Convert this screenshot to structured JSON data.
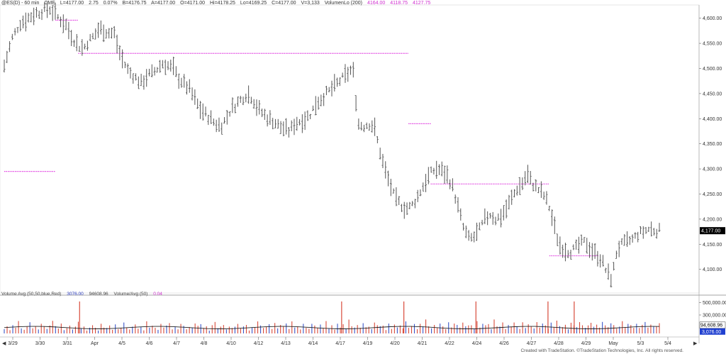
{
  "header": {
    "symbol": "@ES(D) - 60 min",
    "exchange": "CME",
    "last": "L=4177.00",
    "change": "2.75",
    "change_pct": "0.07%",
    "bid": "B=4176.75",
    "ask": "A=4177.00",
    "open": "O=4171.00",
    "high": "Hi=4178.25",
    "low": "Lo=4169.25",
    "close": "C=4177.00",
    "volume": "V=3,133",
    "indicator": "VolumenLo (200)",
    "ind_v1": "4164.00",
    "ind_v2": "4118.75",
    "ind_v3": "4127.75"
  },
  "volume_header": {
    "label": "Volume Avg (50,50,blue,Red)",
    "v1": "3076.00",
    "v2": "94608.96",
    "label2": "Volume/Avg (50)",
    "v3": "0.04"
  },
  "credit": "Created with TradeStation. ©TradeStation Technologies, Inc. All rights reserved.",
  "colors": {
    "bars": "#555555",
    "level_lines": "#e040e0",
    "vol_up": "#3a55c8",
    "vol_down": "#d84a3a",
    "avg_line": "#222222",
    "last_box_bg": "#000000",
    "vol_box_bg": "#1f3fd0"
  },
  "chart_data": {
    "type": "ohlc",
    "title": "@ES(D) - 60 min",
    "price_axis": {
      "ticks": [
        "4,600.00",
        "4,550.00",
        "4,500.00",
        "4,450.00",
        "4,400.00",
        "4,350.00",
        "4,300.00",
        "4,250.00",
        "4,200.00",
        "4,150.00",
        "4,100.00"
      ],
      "range": [
        4060,
        4625
      ]
    },
    "last_price_label": "4,177.00",
    "volume_axis": {
      "ticks": [
        "500,000.00",
        "300,000.00"
      ],
      "avg_label": "94,608.96",
      "last_label": "3,076.00"
    },
    "x_labels": [
      "3/29",
      "3/30",
      "3/31",
      "Apr",
      "4/5",
      "4/6",
      "4/7",
      "4/8",
      "4/10",
      "4/12",
      "4/13",
      "4/14",
      "4/17",
      "4/19",
      "4/20",
      "4/21",
      "4/22",
      "4/24",
      "4/26",
      "4/27",
      "4/28",
      "4/29",
      "May",
      "5/3",
      "5/4"
    ],
    "price_path": [
      [
        0,
        4505
      ],
      [
        3,
        4560
      ],
      [
        6,
        4590
      ],
      [
        9,
        4600
      ],
      [
        12,
        4610
      ],
      [
        15,
        4615
      ],
      [
        17,
        4620
      ],
      [
        19,
        4610
      ],
      [
        21,
        4598
      ],
      [
        23,
        4590
      ],
      [
        26,
        4560
      ],
      [
        28,
        4545
      ],
      [
        30,
        4540
      ],
      [
        32,
        4555
      ],
      [
        34,
        4565
      ],
      [
        36,
        4580
      ],
      [
        38,
        4575
      ],
      [
        40,
        4570
      ],
      [
        42,
        4570
      ],
      [
        43,
        4540
      ],
      [
        45,
        4515
      ],
      [
        47,
        4495
      ],
      [
        50,
        4480
      ],
      [
        52,
        4470
      ],
      [
        54,
        4485
      ],
      [
        56,
        4490
      ],
      [
        58,
        4500
      ],
      [
        60,
        4510
      ],
      [
        62,
        4505
      ],
      [
        64,
        4500
      ],
      [
        66,
        4480
      ],
      [
        68,
        4470
      ],
      [
        70,
        4460
      ],
      [
        72,
        4440
      ],
      [
        74,
        4420
      ],
      [
        76,
        4410
      ],
      [
        78,
        4400
      ],
      [
        80,
        4390
      ],
      [
        82,
        4385
      ],
      [
        84,
        4400
      ],
      [
        86,
        4420
      ],
      [
        88,
        4430
      ],
      [
        90,
        4440
      ],
      [
        92,
        4450
      ],
      [
        94,
        4440
      ],
      [
        96,
        4420
      ],
      [
        98,
        4410
      ],
      [
        100,
        4400
      ],
      [
        102,
        4395
      ],
      [
        104,
        4385
      ],
      [
        106,
        4380
      ],
      [
        108,
        4375
      ],
      [
        110,
        4390
      ],
      [
        112,
        4395
      ],
      [
        114,
        4400
      ],
      [
        116,
        4410
      ],
      [
        118,
        4430
      ],
      [
        120,
        4440
      ],
      [
        122,
        4450
      ],
      [
        124,
        4460
      ],
      [
        126,
        4470
      ],
      [
        128,
        4480
      ],
      [
        130,
        4490
      ],
      [
        132,
        4500
      ],
      [
        134,
        4390
      ],
      [
        136,
        4385
      ],
      [
        138,
        4390
      ],
      [
        140,
        4385
      ],
      [
        142,
        4340
      ],
      [
        144,
        4300
      ],
      [
        146,
        4270
      ],
      [
        148,
        4240
      ],
      [
        150,
        4230
      ],
      [
        152,
        4220
      ],
      [
        154,
        4225
      ],
      [
        156,
        4240
      ],
      [
        158,
        4260
      ],
      [
        160,
        4280
      ],
      [
        162,
        4295
      ],
      [
        164,
        4300
      ],
      [
        166,
        4295
      ],
      [
        168,
        4285
      ],
      [
        170,
        4260
      ],
      [
        172,
        4220
      ],
      [
        174,
        4180
      ],
      [
        176,
        4160
      ],
      [
        178,
        4165
      ],
      [
        180,
        4180
      ],
      [
        182,
        4200
      ],
      [
        184,
        4210
      ],
      [
        186,
        4200
      ],
      [
        188,
        4205
      ],
      [
        190,
        4220
      ],
      [
        192,
        4240
      ],
      [
        194,
        4260
      ],
      [
        196,
        4270
      ],
      [
        198,
        4290
      ],
      [
        200,
        4270
      ],
      [
        202,
        4260
      ],
      [
        204,
        4250
      ],
      [
        206,
        4230
      ],
      [
        208,
        4190
      ],
      [
        210,
        4150
      ],
      [
        212,
        4140
      ],
      [
        214,
        4135
      ],
      [
        216,
        4140
      ],
      [
        218,
        4150
      ],
      [
        220,
        4155
      ],
      [
        222,
        4140
      ],
      [
        224,
        4130
      ],
      [
        226,
        4120
      ],
      [
        228,
        4095
      ],
      [
        230,
        4080
      ],
      [
        232,
        4140
      ],
      [
        234,
        4150
      ],
      [
        236,
        4155
      ],
      [
        238,
        4160
      ],
      [
        240,
        4170
      ],
      [
        242,
        4175
      ],
      [
        244,
        4180
      ],
      [
        246,
        4178
      ],
      [
        248,
        4177
      ]
    ],
    "volume_bars": [
      3,
      5,
      2,
      6,
      4,
      8,
      3,
      2,
      5,
      7,
      3,
      4,
      2,
      6,
      4,
      3,
      5,
      9,
      4,
      3,
      6,
      2,
      3,
      5,
      2,
      4,
      8,
      3,
      5,
      2,
      4,
      6,
      3,
      2,
      7,
      4,
      3,
      5,
      2,
      6,
      3,
      4,
      7,
      3,
      2,
      5,
      6,
      3,
      4,
      2,
      8,
      3,
      5,
      4,
      2,
      6,
      3,
      5,
      7,
      2,
      4,
      3,
      6,
      5,
      2,
      4,
      3,
      7,
      5,
      6,
      3,
      4,
      2,
      5,
      8,
      3,
      4,
      6,
      2,
      5,
      3,
      4,
      7,
      3,
      5,
      6,
      2,
      4,
      3,
      8,
      5,
      3,
      4,
      6,
      2,
      7,
      3,
      5,
      4,
      6,
      3,
      8,
      4,
      5,
      2,
      6,
      4,
      3,
      7,
      5,
      3,
      6,
      4,
      8,
      3,
      5,
      2,
      7,
      4,
      6,
      3,
      9,
      5,
      4,
      6,
      3,
      7,
      4,
      5,
      3,
      8,
      6,
      4,
      5,
      2,
      7,
      3,
      6,
      4,
      5,
      3,
      8,
      4,
      5,
      6,
      3,
      7,
      4,
      9,
      5,
      3,
      6,
      4,
      7,
      5,
      3,
      8,
      4,
      6,
      5,
      3,
      7,
      4,
      5,
      6,
      3,
      8,
      4,
      7,
      5,
      6,
      3,
      9,
      4,
      5,
      7,
      3,
      6,
      4,
      8,
      5,
      3,
      7,
      4,
      6,
      5,
      3,
      8,
      4,
      6,
      5,
      3,
      7,
      4,
      9,
      5,
      4,
      6,
      3,
      7,
      5,
      4,
      8,
      6,
      3,
      5,
      7,
      4,
      6,
      3,
      8,
      5,
      4,
      7,
      6,
      3,
      5,
      9,
      4,
      6,
      5,
      3,
      7,
      4,
      5,
      8,
      3,
      6,
      4,
      5,
      7
    ],
    "levels": [
      {
        "price": 4596,
        "from": 0.078,
        "to": 0.113
      },
      {
        "price": 4530,
        "from": 0.113,
        "to": 0.617
      },
      {
        "price": 4295,
        "from": 0.0,
        "to": 0.078
      },
      {
        "price": 4390,
        "from": 0.617,
        "to": 0.651
      },
      {
        "price": 4270,
        "from": 0.651,
        "to": 0.832
      },
      {
        "price": 4127,
        "from": 0.832,
        "to": 0.908
      }
    ],
    "grid": false
  }
}
